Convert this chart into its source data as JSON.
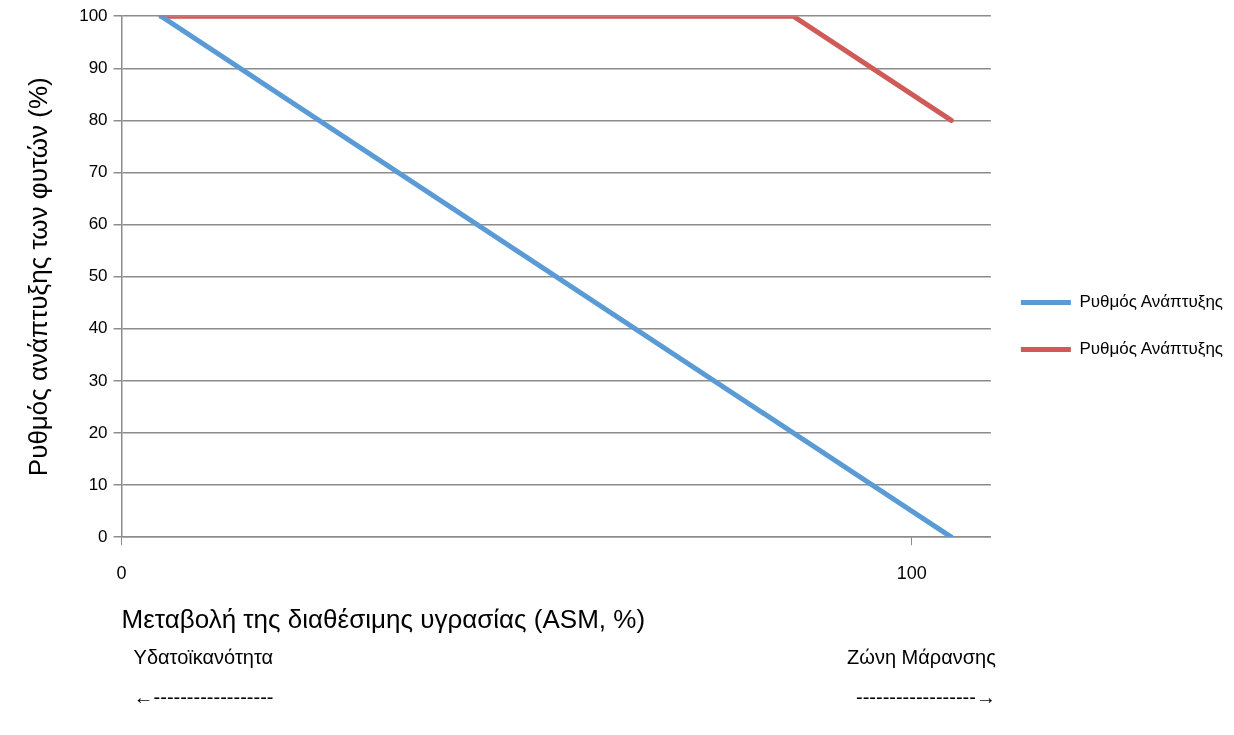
{
  "chart_data": {
    "type": "line",
    "xlabel": "Μεταβολή της διαθέσιμης υγρασίας (ASM, %)",
    "ylabel": "Ρυθμός ανάπτυξης των φυτών (%)",
    "xlim": [
      0,
      110
    ],
    "xticks": [
      0,
      100
    ],
    "ylim": [
      0,
      100
    ],
    "yticks": [
      0,
      10,
      20,
      30,
      40,
      50,
      60,
      70,
      80,
      90,
      100
    ],
    "grid": "y",
    "legend": "right",
    "marker": "none",
    "line_style": "solid",
    "series": [
      {
        "name": "Ρυθμός Ανάπτυξης",
        "color": "#5b9bd5",
        "x": [
          5,
          105
        ],
        "values": [
          100,
          0
        ]
      },
      {
        "name": "Ρυθμός Ανάπτυξης",
        "color": "#d05a58",
        "x": [
          5,
          85,
          105
        ],
        "values": [
          100,
          100,
          80
        ]
      }
    ],
    "annotations": [
      "Υδατοϊκανότητα",
      "Ζώνη Μάρανσης",
      "←------------------",
      "------------------→"
    ]
  }
}
